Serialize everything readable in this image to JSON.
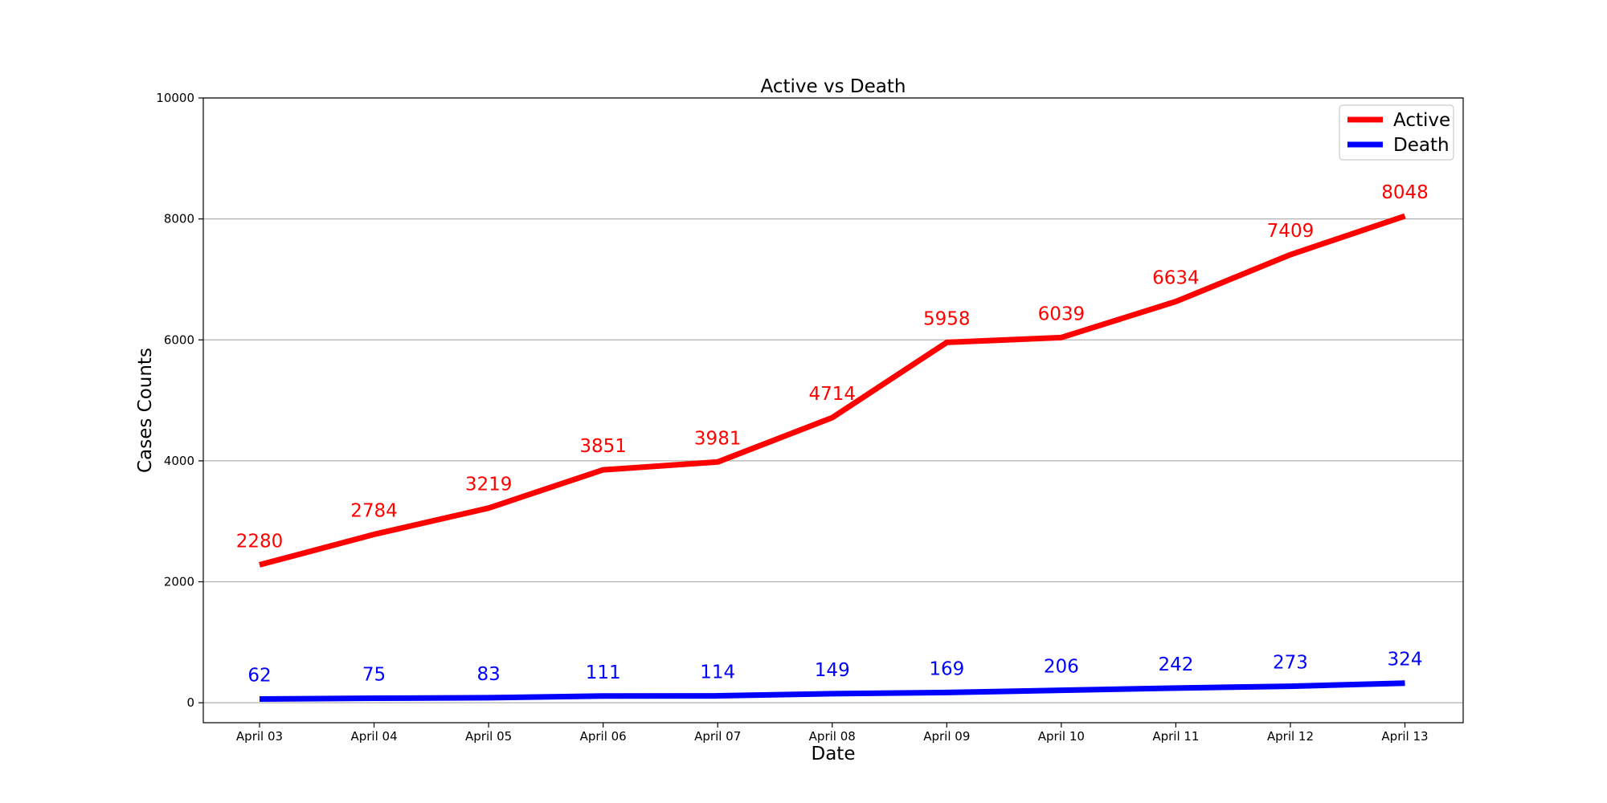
{
  "chart_data": {
    "type": "line",
    "title": "Active vs Death",
    "xlabel": "Date",
    "ylabel": "Cases Counts",
    "categories": [
      "April 03",
      "April 04",
      "April 05",
      "April 06",
      "April 07",
      "April 08",
      "April 09",
      "April 10",
      "April 11",
      "April 12",
      "April 13"
    ],
    "series": [
      {
        "name": "Active",
        "color": "#ff0000",
        "values": [
          2280,
          2784,
          3219,
          3851,
          3981,
          4714,
          5958,
          6039,
          6634,
          7409,
          8048
        ]
      },
      {
        "name": "Death",
        "color": "#0000ff",
        "values": [
          62,
          75,
          83,
          111,
          114,
          149,
          169,
          206,
          242,
          273,
          324
        ]
      }
    ],
    "ylim": [
      -330,
      10000
    ],
    "yticks": [
      0,
      2000,
      4000,
      6000,
      8000,
      10000
    ],
    "grid": "horizontal",
    "legend_position": "top-right",
    "data_labels": true
  }
}
